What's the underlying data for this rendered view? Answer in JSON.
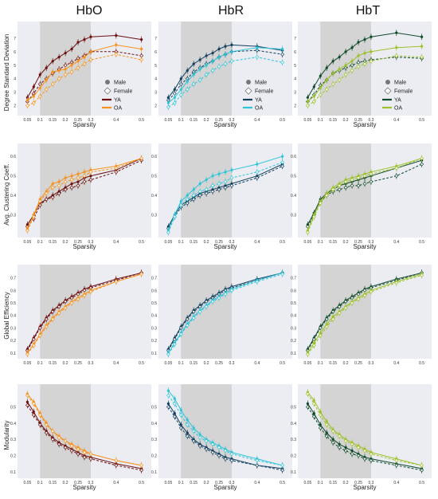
{
  "column_titles": [
    "HbO",
    "HbR",
    "HbT"
  ],
  "legend": {
    "male": "Male",
    "female": "Female",
    "ya": "YA",
    "oa": "OA"
  },
  "colors": {
    "HbO": {
      "YA": "#6b0f0f",
      "OA": "#f6921e"
    },
    "HbR": {
      "YA": "#123f5e",
      "OA": "#2ec4d8"
    },
    "HbT": {
      "YA": "#0f4a2a",
      "OA": "#9cc12a"
    },
    "shade": "#d4d4d4",
    "panel_bg": "#ecedf3"
  },
  "chart_data": [
    {
      "type": "line",
      "row": "Degree Standard Deviation",
      "xlabel": "Sparsity",
      "ylabel": "Degree Standard Deviation",
      "x": [
        0.05,
        0.075,
        0.1,
        0.125,
        0.15,
        0.175,
        0.2,
        0.225,
        0.25,
        0.275,
        0.3,
        0.4,
        0.5
      ],
      "ylim": [
        1.5,
        8
      ],
      "yticks": [
        2,
        3,
        4,
        5,
        6,
        7
      ],
      "xticks": [
        0.05,
        0.1,
        0.15,
        0.2,
        0.25,
        0.3,
        0.4,
        0.5
      ],
      "xticklabels": [
        "0.05",
        "0.1",
        "0.15",
        "0.2",
        "0.25",
        "0.3",
        "0.4",
        "0.5"
      ],
      "shaded_x": [
        0.1,
        0.3
      ],
      "legend_position": "right"
    },
    {
      "type": "line",
      "row": "Avg. Clustering Coeff.",
      "xlabel": "Sparsity",
      "ylabel": "Avg. Clustering Coeff.",
      "x": [
        0.05,
        0.075,
        0.1,
        0.125,
        0.15,
        0.175,
        0.2,
        0.225,
        0.25,
        0.275,
        0.3,
        0.4,
        0.5
      ],
      "ylim": [
        0.2,
        0.65
      ],
      "yticks": [
        0.3,
        0.4,
        0.5,
        0.6
      ],
      "xticks": [
        0.05,
        0.1,
        0.15,
        0.2,
        0.25,
        0.3,
        0.4,
        0.5
      ],
      "xticklabels": [
        "0.05",
        "0.1",
        "0.15",
        "0.2",
        "0.25",
        "0.3",
        "0.4",
        "0.5"
      ],
      "shaded_x": [
        0.1,
        0.3
      ]
    },
    {
      "type": "line",
      "row": "Global Efficiency",
      "xlabel": "",
      "ylabel": "Global Efficiency",
      "x": [
        0.05,
        0.075,
        0.1,
        0.125,
        0.15,
        0.175,
        0.2,
        0.225,
        0.25,
        0.275,
        0.3,
        0.4,
        0.5
      ],
      "ylim": [
        0.08,
        0.78
      ],
      "yticks": [
        0.1,
        0.2,
        0.3,
        0.4,
        0.5,
        0.6,
        0.7
      ],
      "xticks": [
        0.05,
        0.1,
        0.15,
        0.2,
        0.25,
        0.3,
        0.4,
        0.5
      ],
      "xticklabels": [
        "0.05",
        "0.1",
        "0.15",
        "0.2",
        "0.25",
        "0.3",
        "0.4",
        "0.5"
      ],
      "shaded_x": [
        0.1,
        0.3
      ]
    },
    {
      "type": "line",
      "row": "Modularity",
      "xlabel": "Sparsity",
      "ylabel": "Modularity",
      "x": [
        0.05,
        0.075,
        0.1,
        0.125,
        0.15,
        0.175,
        0.2,
        0.225,
        0.25,
        0.275,
        0.3,
        0.4,
        0.5
      ],
      "ylim": [
        0.08,
        0.62
      ],
      "yticks": [
        0.1,
        0.2,
        0.3,
        0.4,
        0.5
      ],
      "xticks": [
        0.05,
        0.1,
        0.15,
        0.2,
        0.25,
        0.3,
        0.4,
        0.5
      ],
      "xticklabels": [
        "0.05",
        "0.1",
        "0.15",
        "0.2",
        "0.25",
        "0.3",
        "0.4",
        "0.5"
      ],
      "shaded_x": [
        0.1,
        0.3
      ]
    }
  ],
  "series": {
    "HbO": [
      {
        "YA_M": [
          2.6,
          3.4,
          4.3,
          4.8,
          5.3,
          5.6,
          5.9,
          6.2,
          6.7,
          6.9,
          7.1,
          7.2,
          6.9
        ],
        "YA_F": [
          2.3,
          2.9,
          3.6,
          4.0,
          4.4,
          4.7,
          5.0,
          5.2,
          5.5,
          5.7,
          6.0,
          6.0,
          5.7
        ],
        "OA_M": [
          2.4,
          2.7,
          3.3,
          3.9,
          4.5,
          4.6,
          4.7,
          5.0,
          5.3,
          5.6,
          6.0,
          6.5,
          6.2
        ],
        "OA_F": [
          2.0,
          2.2,
          2.7,
          3.2,
          3.6,
          4.0,
          4.3,
          4.5,
          4.8,
          5.1,
          5.4,
          5.8,
          5.4
        ]
      },
      {
        "YA_M": [
          0.25,
          0.3,
          0.36,
          0.38,
          0.4,
          0.42,
          0.44,
          0.46,
          0.47,
          0.49,
          0.5,
          0.53,
          0.59
        ],
        "YA_F": [
          0.24,
          0.28,
          0.35,
          0.38,
          0.39,
          0.41,
          0.43,
          0.44,
          0.45,
          0.47,
          0.48,
          0.52,
          0.58
        ],
        "OA_M": [
          0.23,
          0.3,
          0.38,
          0.42,
          0.46,
          0.47,
          0.49,
          0.5,
          0.51,
          0.52,
          0.53,
          0.55,
          0.59
        ],
        "OA_F": [
          0.22,
          0.29,
          0.37,
          0.41,
          0.44,
          0.45,
          0.47,
          0.48,
          0.49,
          0.5,
          0.52,
          0.54,
          0.59
        ]
      },
      {
        "YA_M": [
          0.13,
          0.22,
          0.31,
          0.38,
          0.44,
          0.48,
          0.52,
          0.55,
          0.58,
          0.61,
          0.63,
          0.69,
          0.74
        ],
        "YA_F": [
          0.12,
          0.21,
          0.3,
          0.37,
          0.43,
          0.47,
          0.51,
          0.54,
          0.57,
          0.6,
          0.62,
          0.68,
          0.74
        ],
        "OA_M": [
          0.1,
          0.17,
          0.25,
          0.32,
          0.38,
          0.43,
          0.47,
          0.51,
          0.54,
          0.57,
          0.6,
          0.67,
          0.73
        ],
        "OA_F": [
          0.09,
          0.16,
          0.24,
          0.31,
          0.37,
          0.42,
          0.46,
          0.5,
          0.53,
          0.56,
          0.59,
          0.67,
          0.73
        ]
      },
      {
        "YA_M": [
          0.53,
          0.47,
          0.4,
          0.35,
          0.31,
          0.28,
          0.26,
          0.24,
          0.22,
          0.2,
          0.19,
          0.15,
          0.12
        ],
        "YA_F": [
          0.51,
          0.45,
          0.39,
          0.34,
          0.3,
          0.27,
          0.25,
          0.23,
          0.21,
          0.19,
          0.18,
          0.14,
          0.11
        ],
        "OA_M": [
          0.58,
          0.53,
          0.46,
          0.4,
          0.35,
          0.32,
          0.29,
          0.27,
          0.25,
          0.23,
          0.21,
          0.17,
          0.14
        ],
        "OA_F": [
          0.57,
          0.52,
          0.45,
          0.39,
          0.35,
          0.31,
          0.29,
          0.26,
          0.24,
          0.22,
          0.21,
          0.17,
          0.14
        ]
      }
    ],
    "HbR": [
      {
        "YA_M": [
          2.6,
          3.2,
          4.0,
          4.6,
          5.1,
          5.4,
          5.7,
          5.9,
          6.2,
          6.4,
          6.5,
          6.4,
          6.1
        ],
        "YA_F": [
          2.4,
          2.9,
          3.6,
          4.0,
          4.5,
          4.8,
          5.1,
          5.3,
          5.6,
          5.8,
          6.0,
          6.1,
          5.8
        ],
        "OA_M": [
          2.2,
          2.6,
          3.2,
          3.8,
          4.3,
          4.7,
          5.0,
          5.3,
          5.6,
          5.8,
          6.0,
          6.3,
          6.2
        ],
        "OA_F": [
          1.9,
          2.2,
          2.8,
          3.2,
          3.6,
          3.9,
          4.3,
          4.6,
          4.9,
          5.1,
          5.3,
          5.6,
          5.2
        ]
      },
      {
        "YA_M": [
          0.24,
          0.3,
          0.35,
          0.37,
          0.39,
          0.41,
          0.42,
          0.43,
          0.44,
          0.45,
          0.46,
          0.5,
          0.56
        ],
        "YA_F": [
          0.23,
          0.29,
          0.34,
          0.36,
          0.38,
          0.4,
          0.41,
          0.42,
          0.43,
          0.44,
          0.45,
          0.49,
          0.55
        ],
        "OA_M": [
          0.22,
          0.3,
          0.37,
          0.4,
          0.43,
          0.46,
          0.48,
          0.5,
          0.51,
          0.52,
          0.53,
          0.56,
          0.6
        ],
        "OA_F": [
          0.21,
          0.29,
          0.35,
          0.38,
          0.4,
          0.42,
          0.43,
          0.45,
          0.46,
          0.47,
          0.49,
          0.52,
          0.57
        ]
      },
      {
        "YA_M": [
          0.13,
          0.22,
          0.31,
          0.38,
          0.44,
          0.48,
          0.52,
          0.55,
          0.58,
          0.61,
          0.63,
          0.69,
          0.74
        ],
        "YA_F": [
          0.12,
          0.21,
          0.3,
          0.37,
          0.43,
          0.47,
          0.51,
          0.54,
          0.57,
          0.6,
          0.62,
          0.68,
          0.74
        ],
        "OA_M": [
          0.1,
          0.18,
          0.26,
          0.33,
          0.39,
          0.44,
          0.48,
          0.52,
          0.55,
          0.58,
          0.61,
          0.68,
          0.74
        ],
        "OA_F": [
          0.09,
          0.17,
          0.25,
          0.32,
          0.38,
          0.43,
          0.47,
          0.51,
          0.54,
          0.57,
          0.6,
          0.67,
          0.73
        ]
      },
      {
        "YA_M": [
          0.52,
          0.46,
          0.39,
          0.34,
          0.3,
          0.27,
          0.25,
          0.23,
          0.21,
          0.19,
          0.18,
          0.14,
          0.12
        ],
        "YA_F": [
          0.5,
          0.44,
          0.37,
          0.32,
          0.29,
          0.26,
          0.24,
          0.22,
          0.2,
          0.18,
          0.17,
          0.14,
          0.11
        ],
        "OA_M": [
          0.6,
          0.55,
          0.48,
          0.42,
          0.37,
          0.33,
          0.3,
          0.28,
          0.26,
          0.24,
          0.22,
          0.18,
          0.14
        ],
        "OA_F": [
          0.57,
          0.52,
          0.45,
          0.39,
          0.35,
          0.31,
          0.29,
          0.27,
          0.25,
          0.23,
          0.21,
          0.17,
          0.14
        ]
      }
    ],
    "HbT": [
      {
        "YA_M": [
          2.6,
          3.4,
          4.2,
          4.8,
          5.3,
          5.6,
          6.0,
          6.3,
          6.7,
          6.9,
          7.1,
          7.4,
          7.1
        ],
        "YA_F": [
          2.3,
          2.8,
          3.5,
          3.9,
          4.4,
          4.6,
          4.8,
          5.0,
          5.2,
          5.3,
          5.4,
          5.6,
          5.5
        ],
        "OA_M": [
          2.3,
          2.7,
          3.3,
          3.9,
          4.4,
          4.7,
          5.0,
          5.3,
          5.7,
          5.9,
          6.0,
          6.3,
          6.4
        ],
        "OA_F": [
          2.0,
          2.3,
          2.8,
          3.2,
          3.6,
          3.9,
          4.3,
          4.6,
          4.9,
          5.1,
          5.3,
          5.7,
          5.6
        ]
      },
      {
        "YA_M": [
          0.25,
          0.31,
          0.38,
          0.41,
          0.43,
          0.45,
          0.46,
          0.47,
          0.48,
          0.49,
          0.5,
          0.54,
          0.58
        ],
        "YA_F": [
          0.24,
          0.3,
          0.37,
          0.4,
          0.42,
          0.43,
          0.44,
          0.45,
          0.45,
          0.46,
          0.47,
          0.5,
          0.56
        ],
        "OA_M": [
          0.22,
          0.3,
          0.37,
          0.41,
          0.44,
          0.46,
          0.48,
          0.49,
          0.5,
          0.51,
          0.52,
          0.55,
          0.59
        ],
        "OA_F": [
          0.21,
          0.29,
          0.36,
          0.4,
          0.43,
          0.45,
          0.47,
          0.48,
          0.49,
          0.5,
          0.51,
          0.54,
          0.59
        ]
      },
      {
        "YA_M": [
          0.13,
          0.22,
          0.31,
          0.38,
          0.44,
          0.48,
          0.52,
          0.55,
          0.58,
          0.61,
          0.63,
          0.69,
          0.74
        ],
        "YA_F": [
          0.12,
          0.21,
          0.3,
          0.37,
          0.43,
          0.47,
          0.51,
          0.54,
          0.57,
          0.6,
          0.62,
          0.68,
          0.74
        ],
        "OA_M": [
          0.1,
          0.18,
          0.26,
          0.33,
          0.39,
          0.43,
          0.47,
          0.51,
          0.54,
          0.57,
          0.6,
          0.67,
          0.73
        ],
        "OA_F": [
          0.09,
          0.16,
          0.24,
          0.31,
          0.37,
          0.42,
          0.46,
          0.5,
          0.53,
          0.56,
          0.59,
          0.66,
          0.72
        ]
      },
      {
        "YA_M": [
          0.52,
          0.46,
          0.39,
          0.34,
          0.3,
          0.27,
          0.25,
          0.23,
          0.21,
          0.19,
          0.18,
          0.15,
          0.12
        ],
        "YA_F": [
          0.5,
          0.44,
          0.37,
          0.32,
          0.28,
          0.25,
          0.23,
          0.21,
          0.2,
          0.18,
          0.17,
          0.14,
          0.11
        ],
        "OA_M": [
          0.59,
          0.54,
          0.47,
          0.41,
          0.36,
          0.33,
          0.3,
          0.28,
          0.26,
          0.24,
          0.22,
          0.18,
          0.14
        ],
        "OA_F": [
          0.58,
          0.52,
          0.45,
          0.39,
          0.35,
          0.32,
          0.29,
          0.27,
          0.25,
          0.23,
          0.21,
          0.17,
          0.14
        ]
      }
    ]
  }
}
